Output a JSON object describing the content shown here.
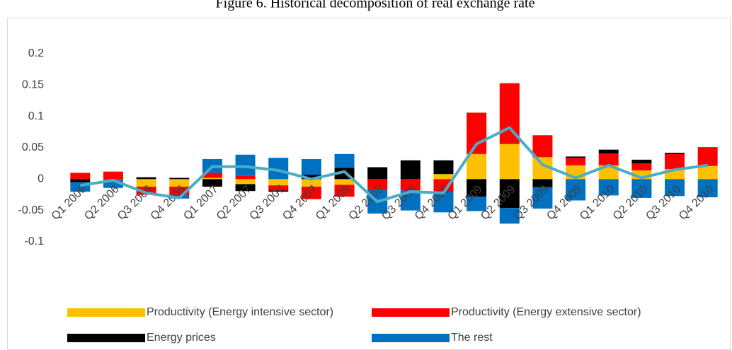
{
  "chart_data": {
    "type": "bar",
    "stacked": true,
    "title": "Figure 6. Historical decomposition of real exchange rate",
    "categories": [
      "Q1 2006",
      "Q2 2006",
      "Q3 2006",
      "Q4 2006",
      "Q1 2007",
      "Q2 2007",
      "Q3 2007",
      "Q4 2007",
      "Q1 2008",
      "Q2 2008",
      "Q3 2008",
      "Q4 2008",
      "Q1 2009",
      "Q2 2009",
      "Q3 2009",
      "Q4 2009",
      "Q1 2010",
      "Q2 2010",
      "Q3 2010",
      "Q4 2010"
    ],
    "series": [
      {
        "name": "Productivity  (Energy intensive sector)",
        "color": "#ffc000",
        "values": [
          0,
          0,
          -0.012,
          -0.012,
          0.002,
          -0.008,
          -0.01,
          -0.012,
          -0.009,
          0,
          0,
          0.008,
          0.04,
          0.056,
          0.035,
          0.022,
          0.022,
          0.014,
          0.016,
          0.021
        ]
      },
      {
        "name": "Productivity  (Energy extensive sector)",
        "color": "#ff0000",
        "values": [
          0.01,
          0.012,
          -0.013,
          -0.013,
          0.008,
          0.005,
          -0.008,
          -0.02,
          -0.019,
          -0.017,
          -0.018,
          -0.02,
          0.066,
          0.097,
          0.035,
          0.012,
          0.019,
          0.011,
          0.024,
          0.03
        ]
      },
      {
        "name": "Energy prices",
        "color": "#000000",
        "values": [
          -0.005,
          0,
          0.003,
          0.002,
          -0.012,
          -0.011,
          -0.002,
          0.007,
          0.018,
          0.019,
          0.03,
          0.022,
          -0.028,
          -0.046,
          -0.013,
          0.002,
          0.006,
          0.006,
          0.002,
          0
        ]
      },
      {
        "name": "The rest",
        "color": "#0070c0",
        "values": [
          -0.015,
          -0.014,
          0,
          -0.006,
          0.022,
          0.034,
          0.034,
          0.025,
          0.022,
          -0.038,
          -0.032,
          -0.033,
          -0.023,
          -0.025,
          -0.034,
          -0.034,
          -0.026,
          -0.03,
          -0.027,
          -0.029
        ]
      }
    ],
    "line": {
      "color": "#4bacc6",
      "values": [
        -0.01,
        -0.002,
        -0.022,
        -0.03,
        0.02,
        0.02,
        0.014,
        0,
        0.012,
        -0.036,
        -0.02,
        -0.022,
        0.056,
        0.082,
        0.023,
        0.002,
        0.022,
        0.002,
        0.015,
        0.022
      ]
    },
    "ylim": [
      -0.1,
      0.2
    ],
    "yticks": [
      -0.1,
      -0.05,
      0,
      0.05,
      0.1,
      0.15,
      0.2
    ],
    "legend": "bottom"
  }
}
